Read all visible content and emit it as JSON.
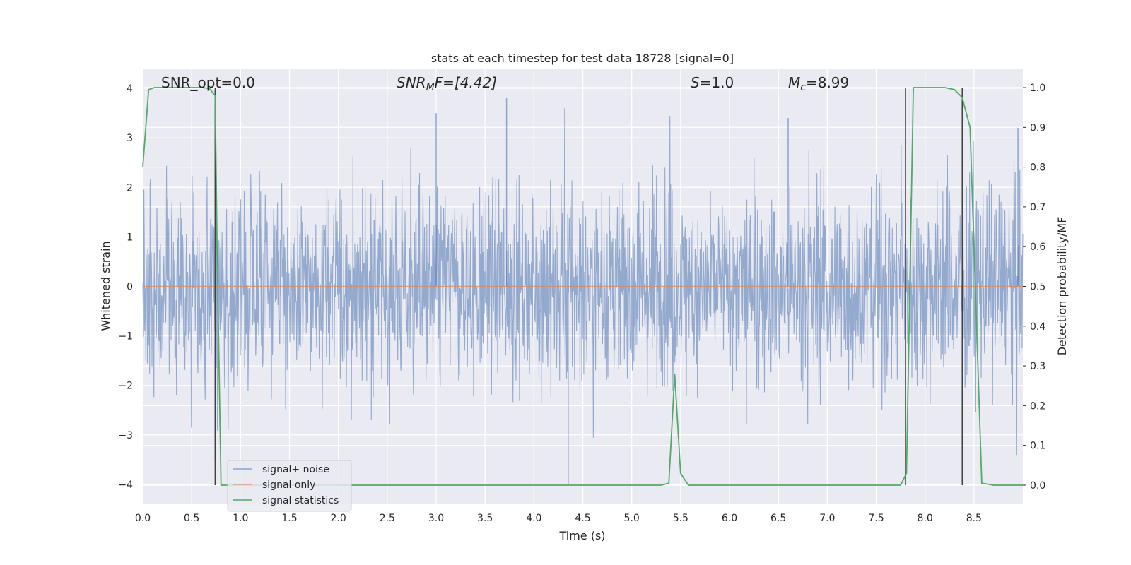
{
  "chart_data": {
    "type": "line",
    "title": "stats at each timestep for test data 18728 [signal=0]",
    "xlabel": "Time (s)",
    "ylabel": "Whitened strain",
    "y2label": "Detection probability/MF",
    "xlim": [
      0.0,
      9.0
    ],
    "ylim": [
      -4.4,
      4.4
    ],
    "y2lim": [
      -0.048,
      1.048
    ],
    "xticks": [
      "0.0",
      "0.5",
      "1.0",
      "1.5",
      "2.0",
      "2.5",
      "3.0",
      "3.5",
      "4.0",
      "4.5",
      "5.0",
      "5.5",
      "6.0",
      "6.5",
      "7.0",
      "7.5",
      "8.0",
      "8.5"
    ],
    "yticks": [
      "−4",
      "−3",
      "−2",
      "−1",
      "0",
      "1",
      "2",
      "3",
      "4"
    ],
    "y2ticks": [
      "0.0",
      "0.1",
      "0.2",
      "0.3",
      "0.4",
      "0.5",
      "0.6",
      "0.7",
      "0.8",
      "0.9",
      "1.0"
    ],
    "grid": true,
    "legend_position": "bottom-left",
    "annotations": {
      "snr_opt": "SNR_opt=0.0",
      "snr_mf_var": "SNR",
      "snr_mf_sub": "M",
      "snr_mf_rest": "F=[4.42]",
      "s_var": "S",
      "s_rest": "=1.0",
      "mc_var": "M",
      "mc_sub": "c",
      "mc_rest": "=8.99"
    },
    "series": [
      {
        "name": "signal+ noise",
        "color": "#4c72b0",
        "kind": "noise",
        "amplitude_envelope": [
          -4.0,
          3.6
        ],
        "typical_range": [
          -1.7,
          1.7
        ],
        "notable_spikes": [
          {
            "x": 0.74,
            "y": 3.0
          },
          {
            "x": 0.74,
            "y": -3.5
          },
          {
            "x": 3.0,
            "y": 3.5
          },
          {
            "x": 3.72,
            "y": 3.8
          },
          {
            "x": 4.35,
            "y": -4.0
          },
          {
            "x": 6.6,
            "y": 3.4
          },
          {
            "x": 8.38,
            "y": 3.2
          },
          {
            "x": 8.38,
            "y": -3.1
          },
          {
            "x": 8.95,
            "y": 3.2
          }
        ]
      },
      {
        "name": "signal only",
        "color": "#dd8452",
        "x": [
          0.0,
          9.0
        ],
        "y": [
          0.0,
          0.0
        ]
      },
      {
        "name": "signal statistics",
        "color": "#55a868",
        "axis": "right",
        "x": [
          0.0,
          0.06,
          0.12,
          0.3,
          0.5,
          0.6,
          0.68,
          0.74,
          0.76,
          0.8,
          2.0,
          4.0,
          5.3,
          5.38,
          5.44,
          5.5,
          5.58,
          7.0,
          7.75,
          7.81,
          7.88,
          8.2,
          8.3,
          8.38,
          8.46,
          8.58,
          8.7,
          9.0
        ],
        "y": [
          0.8,
          0.995,
          1.0,
          1.0,
          1.0,
          1.0,
          0.998,
          0.98,
          0.6,
          0.0,
          0.0,
          0.0,
          0.0,
          0.005,
          0.28,
          0.03,
          0.0,
          0.0,
          0.0,
          0.03,
          1.0,
          1.0,
          0.995,
          0.975,
          0.9,
          0.005,
          0.0,
          0.0
        ]
      }
    ],
    "vlines": [
      0.74,
      7.8,
      8.38
    ]
  }
}
